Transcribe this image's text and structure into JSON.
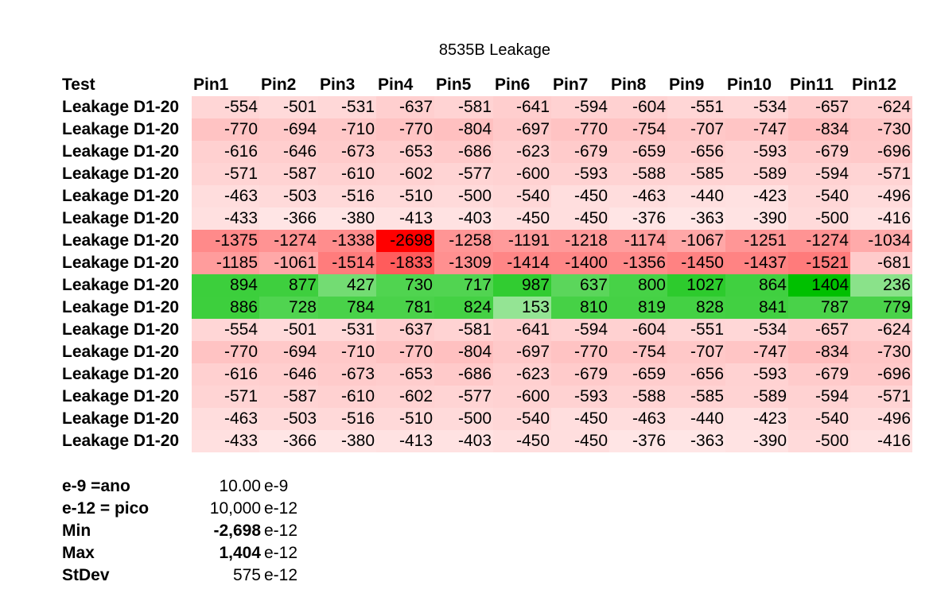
{
  "title": "8535B Leakage",
  "colors": {
    "neg_max": "#ff0000",
    "pos_max": "#00c000",
    "zero": "#ffffff"
  },
  "table": {
    "header": [
      "Test",
      "Pin1",
      "Pin2",
      "Pin3",
      "Pin4",
      "Pin5",
      "Pin6",
      "Pin7",
      "Pin8",
      "Pin9",
      "Pin10",
      "Pin11",
      "Pin12"
    ],
    "rows": [
      {
        "label": "Leakage D1-20",
        "values": [
          -554,
          -501,
          -531,
          -637,
          -581,
          -641,
          -594,
          -604,
          -551,
          -534,
          -657,
          -624
        ]
      },
      {
        "label": "Leakage D1-20",
        "values": [
          -770,
          -694,
          -710,
          -770,
          -804,
          -697,
          -770,
          -754,
          -707,
          -747,
          -834,
          -730
        ]
      },
      {
        "label": "Leakage D1-20",
        "values": [
          -616,
          -646,
          -673,
          -653,
          -686,
          -623,
          -679,
          -659,
          -656,
          -593,
          -679,
          -696
        ]
      },
      {
        "label": "Leakage D1-20",
        "values": [
          -571,
          -587,
          -610,
          -602,
          -577,
          -600,
          -593,
          -588,
          -585,
          -589,
          -594,
          -571
        ]
      },
      {
        "label": "Leakage D1-20",
        "values": [
          -463,
          -503,
          -516,
          -510,
          -500,
          -540,
          -450,
          -463,
          -440,
          -423,
          -540,
          -496
        ]
      },
      {
        "label": "Leakage D1-20",
        "values": [
          -433,
          -366,
          -380,
          -413,
          -403,
          -450,
          -450,
          -376,
          -363,
          -390,
          -500,
          -416
        ]
      },
      {
        "label": "Leakage D1-20",
        "values": [
          -1375,
          -1274,
          -1338,
          -2698,
          -1258,
          -1191,
          -1218,
          -1174,
          -1067,
          -1251,
          -1274,
          -1034
        ]
      },
      {
        "label": "Leakage D1-20",
        "values": [
          -1185,
          -1061,
          -1514,
          -1833,
          -1309,
          -1414,
          -1400,
          -1356,
          -1450,
          -1437,
          -1521,
          -681
        ]
      },
      {
        "label": "Leakage D1-20",
        "values": [
          894,
          877,
          427,
          730,
          717,
          987,
          637,
          800,
          1027,
          864,
          1404,
          236
        ]
      },
      {
        "label": "Leakage D1-20",
        "values": [
          886,
          728,
          784,
          781,
          824,
          153,
          810,
          819,
          828,
          841,
          787,
          779
        ]
      },
      {
        "label": "Leakage D1-20",
        "values": [
          -554,
          -501,
          -531,
          -637,
          -581,
          -641,
          -594,
          -604,
          -551,
          -534,
          -657,
          -624
        ]
      },
      {
        "label": "Leakage D1-20",
        "values": [
          -770,
          -694,
          -710,
          -770,
          -804,
          -697,
          -770,
          -754,
          -707,
          -747,
          -834,
          -730
        ]
      },
      {
        "label": "Leakage D1-20",
        "values": [
          -616,
          -646,
          -673,
          -653,
          -686,
          -623,
          -679,
          -659,
          -656,
          -593,
          -679,
          -696
        ]
      },
      {
        "label": "Leakage D1-20",
        "values": [
          -571,
          -587,
          -610,
          -602,
          -577,
          -600,
          -593,
          -588,
          -585,
          -589,
          -594,
          -571
        ]
      },
      {
        "label": "Leakage D1-20",
        "values": [
          -463,
          -503,
          -516,
          -510,
          -500,
          -540,
          -450,
          -463,
          -440,
          -423,
          -540,
          -496
        ]
      },
      {
        "label": "Leakage D1-20",
        "values": [
          -433,
          -366,
          -380,
          -413,
          -403,
          -450,
          -450,
          -376,
          -363,
          -390,
          -500,
          -416
        ]
      }
    ]
  },
  "stats": [
    {
      "label": "e-9 =ano",
      "value": "10.00",
      "unit": "e-9",
      "bold": false
    },
    {
      "label": "e-12 = pico",
      "value": "10,000",
      "unit": "e-12",
      "bold": false
    },
    {
      "label": "Min",
      "value": "-2,698",
      "unit": "e-12",
      "bold": true
    },
    {
      "label": "Max",
      "value": "1,404",
      "unit": "e-12",
      "bold": true
    },
    {
      "label": "StDev",
      "value": "575",
      "unit": "e-12",
      "bold": false
    }
  ]
}
